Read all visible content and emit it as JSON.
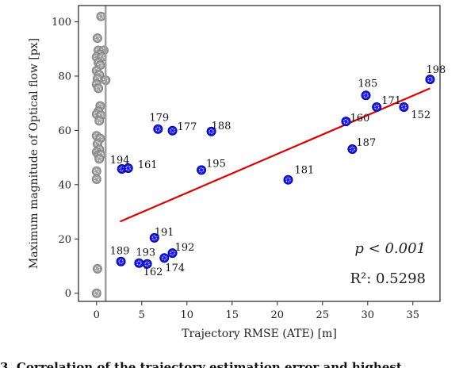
{
  "chart_data": {
    "type": "scatter",
    "xlabel": "Trajectory RMSE (ATE) [m]",
    "ylabel": "Maximum magnitude of Optical flow [px]",
    "xlim": [
      -2,
      38
    ],
    "ylim": [
      -3,
      106
    ],
    "xticks": [
      0,
      5,
      10,
      15,
      20,
      25,
      30,
      35
    ],
    "yticks": [
      0,
      20,
      40,
      60,
      80,
      100
    ],
    "grid": false,
    "colors": {
      "labeled_points": "#1a1aff",
      "labeled_points_edge": "#000080",
      "excluded_points": "#a0a0a0",
      "regression_line": "#e00000",
      "threshold_line": "#a0a0a0"
    },
    "threshold_x": 1.0,
    "labeled_points": [
      {
        "label": "198",
        "x": 36.9,
        "y": 78.8
      },
      {
        "label": "185",
        "x": 29.8,
        "y": 72.9
      },
      {
        "label": "171",
        "x": 31.0,
        "y": 68.6
      },
      {
        "label": "152",
        "x": 34.0,
        "y": 68.6
      },
      {
        "label": "160",
        "x": 27.6,
        "y": 63.3
      },
      {
        "label": "187",
        "x": 28.3,
        "y": 53.1
      },
      {
        "label": "181",
        "x": 21.2,
        "y": 41.8
      },
      {
        "label": "179",
        "x": 6.8,
        "y": 60.5
      },
      {
        "label": "177",
        "x": 8.4,
        "y": 59.9
      },
      {
        "label": "188",
        "x": 12.7,
        "y": 59.6
      },
      {
        "label": "195",
        "x": 11.6,
        "y": 45.4
      },
      {
        "label": "194",
        "x": 2.8,
        "y": 45.8
      },
      {
        "label": "161",
        "x": 3.5,
        "y": 46.1
      },
      {
        "label": "191",
        "x": 6.4,
        "y": 20.4
      },
      {
        "label": "192",
        "x": 8.4,
        "y": 14.8
      },
      {
        "label": "189",
        "x": 2.7,
        "y": 11.7
      },
      {
        "label": "193",
        "x": 4.7,
        "y": 11.1
      },
      {
        "label": "162",
        "x": 5.6,
        "y": 10.8
      },
      {
        "label": "174",
        "x": 7.5,
        "y": 13.0
      }
    ],
    "excluded_points": [
      {
        "x": 0.5,
        "y": 102
      },
      {
        "x": 0.1,
        "y": 94
      },
      {
        "x": 0.2,
        "y": 89.5
      },
      {
        "x": 0.8,
        "y": 89.5
      },
      {
        "x": 0.4,
        "y": 88
      },
      {
        "x": 0.0,
        "y": 87
      },
      {
        "x": 0.6,
        "y": 87
      },
      {
        "x": 0.2,
        "y": 85
      },
      {
        "x": 0.4,
        "y": 84
      },
      {
        "x": 0.0,
        "y": 82
      },
      {
        "x": 0.3,
        "y": 80.5
      },
      {
        "x": 0.1,
        "y": 79
      },
      {
        "x": 1.0,
        "y": 78.5
      },
      {
        "x": 0.0,
        "y": 77
      },
      {
        "x": 0.2,
        "y": 75.5
      },
      {
        "x": 0.4,
        "y": 69
      },
      {
        "x": 0.2,
        "y": 67
      },
      {
        "x": 0.0,
        "y": 66
      },
      {
        "x": 0.5,
        "y": 65.5
      },
      {
        "x": 0.3,
        "y": 63.5
      },
      {
        "x": 0.0,
        "y": 58
      },
      {
        "x": 0.4,
        "y": 57
      },
      {
        "x": 0.1,
        "y": 55
      },
      {
        "x": 0.3,
        "y": 53
      },
      {
        "x": 0.0,
        "y": 52
      },
      {
        "x": 0.2,
        "y": 51
      },
      {
        "x": 0.5,
        "y": 51
      },
      {
        "x": 0.3,
        "y": 49.5
      },
      {
        "x": 0.0,
        "y": 45
      },
      {
        "x": 0.0,
        "y": 42
      },
      {
        "x": 0.1,
        "y": 9
      },
      {
        "x": 0.0,
        "y": 0
      }
    ],
    "regression": {
      "x": [
        2.6,
        36.9
      ],
      "y": [
        26.4,
        75.5
      ]
    },
    "p_text": "p < 0.001",
    "r2_text": "R²: 0.5298"
  },
  "caption_visible": "3.   Correlation of the trajectory estimation error and highest"
}
